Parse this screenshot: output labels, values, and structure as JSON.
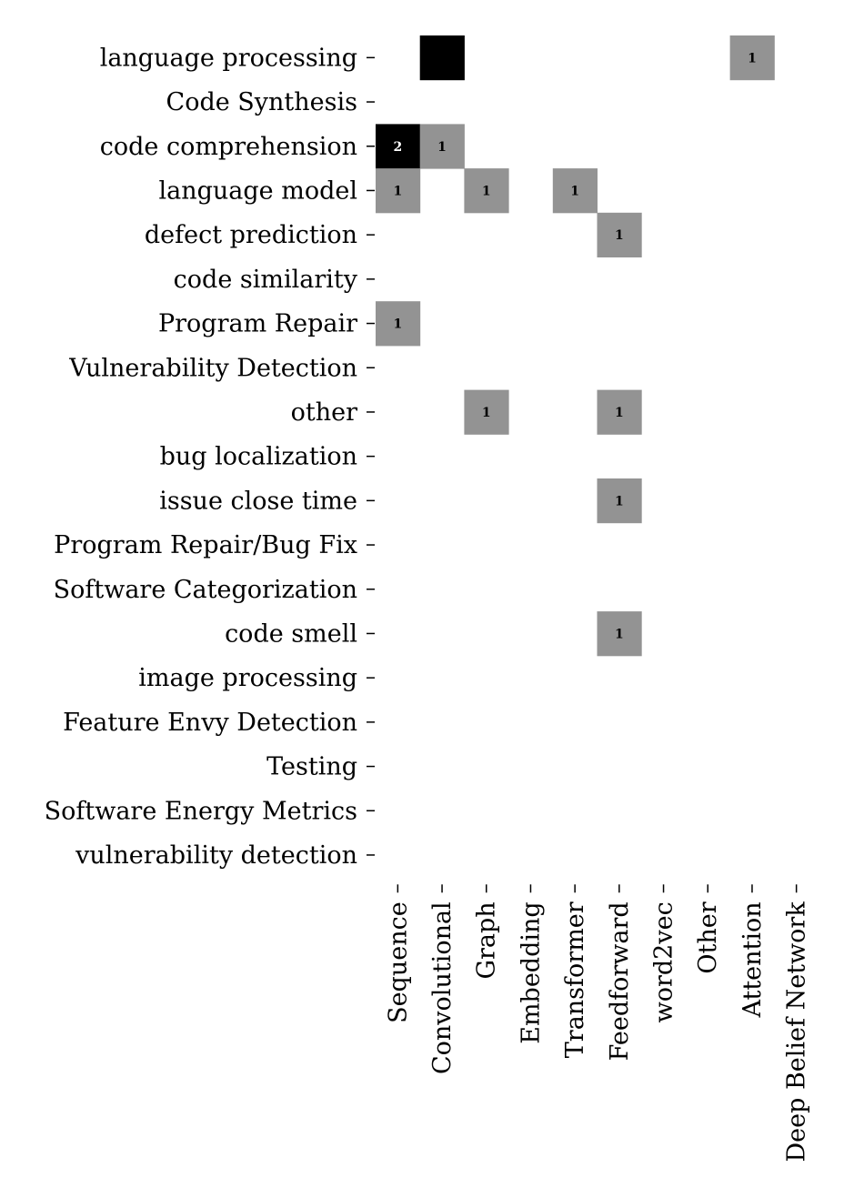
{
  "chart_data": {
    "type": "heatmap",
    "title": "",
    "xlabel": "",
    "ylabel": "",
    "x_categories": [
      "Sequence",
      "Convolutional",
      "Graph",
      "Embedding",
      "Transformer",
      "Feedforward",
      "word2vec",
      "Other",
      "Attention",
      "Deep Belief Network"
    ],
    "y_categories": [
      "language processing",
      "Code Synthesis",
      "code comprehension",
      "language model",
      "defect prediction",
      "code similarity",
      "Program Repair",
      "Vulnerability Detection",
      "other",
      "bug localization",
      "issue close time",
      "Program Repair/Bug Fix",
      "Software Categorization",
      "code smell",
      "image processing",
      "Feature Envy Detection",
      "Testing",
      "Software Energy Metrics",
      "vulnerability detection"
    ],
    "cells": [
      {
        "row": 0,
        "col": 1,
        "value": 2,
        "label": ""
      },
      {
        "row": 0,
        "col": 8,
        "value": 1,
        "label": "1"
      },
      {
        "row": 2,
        "col": 0,
        "value": 2,
        "label": "2"
      },
      {
        "row": 2,
        "col": 1,
        "value": 1,
        "label": "1"
      },
      {
        "row": 3,
        "col": 0,
        "value": 1,
        "label": "1"
      },
      {
        "row": 3,
        "col": 2,
        "value": 1,
        "label": "1"
      },
      {
        "row": 3,
        "col": 4,
        "value": 1,
        "label": "1"
      },
      {
        "row": 4,
        "col": 5,
        "value": 1,
        "label": "1"
      },
      {
        "row": 6,
        "col": 0,
        "value": 1,
        "label": "1"
      },
      {
        "row": 8,
        "col": 2,
        "value": 1,
        "label": "1"
      },
      {
        "row": 8,
        "col": 5,
        "value": 1,
        "label": "1"
      },
      {
        "row": 10,
        "col": 5,
        "value": 1,
        "label": "1"
      },
      {
        "row": 13,
        "col": 5,
        "value": 1,
        "label": "1"
      }
    ],
    "value_range": [
      0,
      2
    ],
    "colors": {
      "low": "#ffffff",
      "mid": "#939393",
      "high": "#000000"
    },
    "grid": false,
    "legend": "none"
  }
}
